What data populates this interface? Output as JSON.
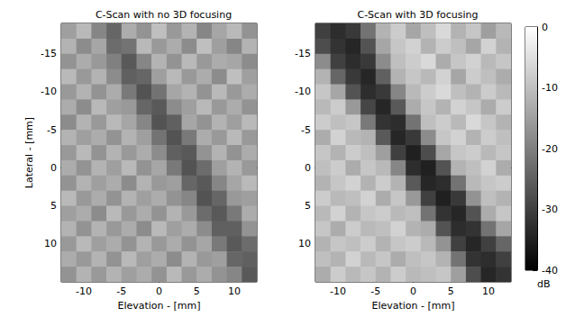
{
  "chart_data": [
    {
      "type": "heatmap",
      "title": "C-Scan with no 3D focusing",
      "xlabel": "Elevation - [mm]",
      "ylabel": "Lateral - [mm]",
      "xlim": [
        -13,
        13
      ],
      "xticks": [
        -10,
        -5,
        0,
        5,
        10
      ],
      "ylim": [
        -19,
        15
      ],
      "yticks": [
        -15,
        -10,
        -5,
        0,
        5,
        10
      ],
      "x": [
        -12,
        -10,
        -8,
        -6,
        -4,
        -2,
        0,
        2,
        4,
        6,
        8,
        10,
        12
      ],
      "y": [
        -18,
        -16,
        -14,
        -12,
        -10,
        -8,
        -6,
        -4,
        -2,
        0,
        2,
        4,
        6,
        8,
        10,
        12,
        14
      ],
      "z": [
        [
          -15,
          -11,
          -19,
          -24,
          -13,
          -17,
          -10,
          -16,
          -12,
          -19,
          -14,
          -11,
          -17
        ],
        [
          -12,
          -18,
          -14,
          -23,
          -22,
          -11,
          -16,
          -13,
          -18,
          -10,
          -15,
          -19,
          -12
        ],
        [
          -17,
          -13,
          -16,
          -20,
          -26,
          -19,
          -12,
          -17,
          -11,
          -16,
          -13,
          -14,
          -18
        ],
        [
          -11,
          -16,
          -12,
          -18,
          -25,
          -24,
          -15,
          -11,
          -16,
          -13,
          -18,
          -10,
          -15
        ],
        [
          -16,
          -12,
          -17,
          -13,
          -21,
          -27,
          -22,
          -14,
          -12,
          -17,
          -11,
          -16,
          -13
        ],
        [
          -13,
          -18,
          -11,
          -15,
          -16,
          -24,
          -26,
          -18,
          -15,
          -11,
          -16,
          -13,
          -17
        ],
        [
          -18,
          -12,
          -16,
          -11,
          -14,
          -19,
          -27,
          -25,
          -14,
          -17,
          -12,
          -15,
          -11
        ],
        [
          -12,
          -15,
          -13,
          -17,
          -12,
          -15,
          -22,
          -27,
          -21,
          -13,
          -16,
          -11,
          -16
        ],
        [
          -16,
          -11,
          -17,
          -12,
          -16,
          -13,
          -18,
          -25,
          -26,
          -17,
          -12,
          -17,
          -13
        ],
        [
          -13,
          -17,
          -12,
          -15,
          -11,
          -17,
          -14,
          -21,
          -27,
          -23,
          -15,
          -12,
          -16
        ],
        [
          -17,
          -12,
          -15,
          -13,
          -18,
          -12,
          -16,
          -15,
          -24,
          -26,
          -19,
          -14,
          -11
        ],
        [
          -11,
          -16,
          -13,
          -17,
          -12,
          -15,
          -13,
          -17,
          -19,
          -27,
          -24,
          -16,
          -15
        ],
        [
          -15,
          -13,
          -18,
          -11,
          -16,
          -13,
          -17,
          -12,
          -16,
          -23,
          -26,
          -21,
          -13
        ],
        [
          -12,
          -17,
          -12,
          -16,
          -13,
          -18,
          -11,
          -15,
          -13,
          -18,
          -25,
          -25,
          -17
        ],
        [
          -16,
          -11,
          -15,
          -13,
          -17,
          -12,
          -16,
          -13,
          -17,
          -14,
          -21,
          -26,
          -23
        ],
        [
          -13,
          -16,
          -12,
          -17,
          -11,
          -15,
          -13,
          -18,
          -12,
          -16,
          -15,
          -24,
          -25
        ],
        [
          -17,
          -12,
          -16,
          -12,
          -15,
          -13,
          -17,
          -11,
          -16,
          -13,
          -17,
          -19,
          -26
        ]
      ]
    },
    {
      "type": "heatmap",
      "title": "C-Scan with 3D focusing",
      "xlabel": "Elevation - [mm]",
      "xlim": [
        -13,
        13
      ],
      "xticks": [
        -10,
        -5,
        0,
        5,
        10
      ],
      "ylim": [
        -19,
        15
      ],
      "yticks": [
        -15,
        -10,
        -5,
        0,
        5,
        10
      ],
      "x": [
        -12,
        -10,
        -8,
        -6,
        -4,
        -2,
        0,
        2,
        4,
        6,
        8,
        10,
        12
      ],
      "y": [
        -18,
        -16,
        -14,
        -12,
        -10,
        -8,
        -6,
        -4,
        -2,
        0,
        2,
        4,
        6,
        8,
        10,
        12,
        14
      ],
      "z": [
        [
          -30,
          -33,
          -31,
          -22,
          -12,
          -8,
          -14,
          -10,
          -6,
          -12,
          -9,
          -15,
          -11
        ],
        [
          -28,
          -32,
          -34,
          -27,
          -14,
          -9,
          -7,
          -12,
          -8,
          -10,
          -14,
          -7,
          -12
        ],
        [
          -18,
          -30,
          -33,
          -31,
          -18,
          -10,
          -8,
          -6,
          -13,
          -9,
          -7,
          -11,
          -9
        ],
        [
          -12,
          -24,
          -31,
          -34,
          -25,
          -12,
          -9,
          -11,
          -7,
          -14,
          -8,
          -10,
          -13
        ],
        [
          -9,
          -14,
          -27,
          -33,
          -31,
          -19,
          -11,
          -8,
          -6,
          -10,
          -12,
          -8,
          -11
        ],
        [
          -11,
          -8,
          -16,
          -29,
          -34,
          -26,
          -13,
          -9,
          -12,
          -7,
          -9,
          -13,
          -8
        ],
        [
          -8,
          -10,
          -9,
          -21,
          -32,
          -33,
          -22,
          -10,
          -8,
          -11,
          -6,
          -9,
          -12
        ],
        [
          -13,
          -7,
          -11,
          -12,
          -26,
          -34,
          -31,
          -18,
          -9,
          -7,
          -12,
          -8,
          -10
        ],
        [
          -9,
          -12,
          -8,
          -10,
          -15,
          -30,
          -35,
          -28,
          -14,
          -9,
          -8,
          -11,
          -9
        ],
        [
          -10,
          -8,
          -13,
          -9,
          -11,
          -19,
          -33,
          -35,
          -27,
          -12,
          -10,
          -7,
          -13
        ],
        [
          -12,
          -9,
          -7,
          -12,
          -8,
          -12,
          -26,
          -34,
          -33,
          -22,
          -11,
          -9,
          -8
        ],
        [
          -8,
          -11,
          -10,
          -7,
          -13,
          -9,
          -16,
          -30,
          -35,
          -31,
          -17,
          -10,
          -12
        ],
        [
          -11,
          -7,
          -12,
          -9,
          -8,
          -11,
          -10,
          -22,
          -32,
          -34,
          -27,
          -13,
          -9
        ],
        [
          -9,
          -13,
          -8,
          -11,
          -10,
          -7,
          -12,
          -13,
          -27,
          -33,
          -32,
          -22,
          -14
        ],
        [
          -12,
          -9,
          -10,
          -8,
          -12,
          -9,
          -8,
          -11,
          -17,
          -30,
          -34,
          -30,
          -24
        ],
        [
          -10,
          -12,
          -7,
          -11,
          -9,
          -13,
          -10,
          -9,
          -12,
          -22,
          -32,
          -33,
          -30
        ],
        [
          -13,
          -8,
          -11,
          -9,
          -12,
          -8,
          -11,
          -10,
          -9,
          -15,
          -28,
          -34,
          -32
        ]
      ],
      "colorbar": {
        "range": [
          -40,
          0
        ],
        "ticks": [
          0,
          -10,
          -20,
          -30,
          -40
        ],
        "label": "dB"
      }
    }
  ]
}
